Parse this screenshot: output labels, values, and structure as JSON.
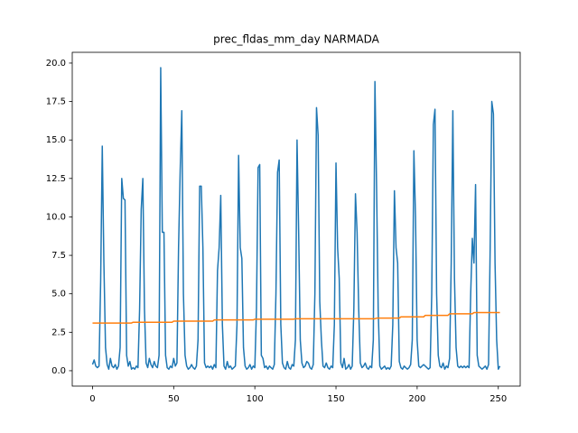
{
  "chart_data": {
    "type": "line",
    "title": "prec_fldas_mm_day NARMADA",
    "x": [
      0,
      1,
      2,
      3,
      4,
      5,
      6,
      7,
      8,
      9,
      10,
      11,
      12,
      13,
      14,
      15,
      16,
      17,
      18,
      19,
      20,
      21,
      22,
      23,
      24,
      25,
      26,
      27,
      28,
      29,
      30,
      31,
      32,
      33,
      34,
      35,
      36,
      37,
      38,
      39,
      40,
      41,
      42,
      43,
      44,
      45,
      46,
      47,
      48,
      49,
      50,
      51,
      52,
      53,
      54,
      55,
      56,
      57,
      58,
      59,
      60,
      61,
      62,
      63,
      64,
      65,
      66,
      67,
      68,
      69,
      70,
      71,
      72,
      73,
      74,
      75,
      76,
      77,
      78,
      79,
      80,
      81,
      82,
      83,
      84,
      85,
      86,
      87,
      88,
      89,
      90,
      91,
      92,
      93,
      94,
      95,
      96,
      97,
      98,
      99,
      100,
      101,
      102,
      103,
      104,
      105,
      106,
      107,
      108,
      109,
      110,
      111,
      112,
      113,
      114,
      115,
      116,
      117,
      118,
      119,
      120,
      121,
      122,
      123,
      124,
      125,
      126,
      127,
      128,
      129,
      130,
      131,
      132,
      133,
      134,
      135,
      136,
      137,
      138,
      139,
      140,
      141,
      142,
      143,
      144,
      145,
      146,
      147,
      148,
      149,
      150,
      151,
      152,
      153,
      154,
      155,
      156,
      157,
      158,
      159,
      160,
      161,
      162,
      163,
      164,
      165,
      166,
      167,
      168,
      169,
      170,
      171,
      172,
      173,
      174,
      175,
      176,
      177,
      178,
      179,
      180,
      181,
      182,
      183,
      184,
      185,
      186,
      187,
      188,
      189,
      190,
      191,
      192,
      193,
      194,
      195,
      196,
      197,
      198,
      199,
      200,
      201,
      202,
      203,
      204,
      205,
      206,
      207,
      208,
      209,
      210,
      211,
      212,
      213,
      214,
      215,
      216,
      217,
      218,
      219,
      220,
      221,
      222,
      223,
      224,
      225,
      226,
      227,
      228,
      229,
      230,
      231,
      232,
      233,
      234,
      235,
      236,
      237,
      238,
      239,
      240,
      241,
      242,
      243,
      244,
      245,
      246,
      247,
      248,
      249,
      250,
      251
    ],
    "series": [
      {
        "color": "#1f77b4",
        "values": [
          0.4,
          0.7,
          0.3,
          0.2,
          0.3,
          5.8,
          14.6,
          7.0,
          1.5,
          0.4,
          0.1,
          0.8,
          0.3,
          0.2,
          0.4,
          0.1,
          0.3,
          1.5,
          12.5,
          11.2,
          11.1,
          1.0,
          0.3,
          0.6,
          0.1,
          0.2,
          0.1,
          0.3,
          0.2,
          4.0,
          10.5,
          12.5,
          4.0,
          0.5,
          0.2,
          0.8,
          0.4,
          0.2,
          0.6,
          0.3,
          0.2,
          1.0,
          19.7,
          9.0,
          9.0,
          1.0,
          0.2,
          0.1,
          0.3,
          0.2,
          0.8,
          0.3,
          0.5,
          8.0,
          13.0,
          16.9,
          5.0,
          1.0,
          0.3,
          0.1,
          0.2,
          0.4,
          0.2,
          0.1,
          0.3,
          2.0,
          12.0,
          12.0,
          8.0,
          0.5,
          0.2,
          0.3,
          0.2,
          0.3,
          0.1,
          0.4,
          0.2,
          6.5,
          8.0,
          11.4,
          3.0,
          0.3,
          0.1,
          0.6,
          0.2,
          0.3,
          0.1,
          0.2,
          0.3,
          3.0,
          14.0,
          8.0,
          7.3,
          1.5,
          0.3,
          0.1,
          0.2,
          0.4,
          0.1,
          0.3,
          0.2,
          4.0,
          13.2,
          13.4,
          1.0,
          0.8,
          0.2,
          0.3,
          0.1,
          0.3,
          0.2,
          0.1,
          0.4,
          5.0,
          12.9,
          13.7,
          3.0,
          0.5,
          0.2,
          0.1,
          0.6,
          0.2,
          0.1,
          0.4,
          0.3,
          2.0,
          15.0,
          9.0,
          2.0,
          0.5,
          0.2,
          0.3,
          0.6,
          0.5,
          0.2,
          0.1,
          0.4,
          5.0,
          17.1,
          15.3,
          4.5,
          2.0,
          0.3,
          0.2,
          0.5,
          0.2,
          0.1,
          0.3,
          0.2,
          3.0,
          13.5,
          8.0,
          6.0,
          0.5,
          0.2,
          0.8,
          0.1,
          0.2,
          0.4,
          0.1,
          0.3,
          4.0,
          11.5,
          9.0,
          4.0,
          0.5,
          0.2,
          0.3,
          0.5,
          0.2,
          0.1,
          0.3,
          0.2,
          2.0,
          18.8,
          12.0,
          4.0,
          0.3,
          0.1,
          0.2,
          0.3,
          0.1,
          0.2,
          0.1,
          0.3,
          3.0,
          11.7,
          8.0,
          7.0,
          0.6,
          0.2,
          0.1,
          0.3,
          0.2,
          0.1,
          0.2,
          0.4,
          2.0,
          14.3,
          10.0,
          2.0,
          0.3,
          0.2,
          0.3,
          0.4,
          0.3,
          0.2,
          0.1,
          0.2,
          5.0,
          16.0,
          17.0,
          5.0,
          1.0,
          0.3,
          0.2,
          0.5,
          0.1,
          0.3,
          0.2,
          0.8,
          7.0,
          16.9,
          6.0,
          1.5,
          0.3,
          0.2,
          0.3,
          0.2,
          0.3,
          0.2,
          0.3,
          0.2,
          5.0,
          8.6,
          7.0,
          12.1,
          1.0,
          0.3,
          0.2,
          0.1,
          0.2,
          0.3,
          0.1,
          0.4,
          8.0,
          17.5,
          16.7,
          7.0,
          2.0,
          0.1,
          0.3
        ]
      },
      {
        "color": "#ff7f0e",
        "values": [
          3.1,
          3.1,
          3.1,
          3.1,
          3.1,
          3.1,
          3.1,
          3.1,
          3.1,
          3.1,
          3.1,
          3.1,
          3.1,
          3.1,
          3.1,
          3.1,
          3.1,
          3.1,
          3.1,
          3.1,
          3.1,
          3.1,
          3.1,
          3.1,
          3.1,
          3.15,
          3.15,
          3.15,
          3.15,
          3.15,
          3.15,
          3.15,
          3.15,
          3.15,
          3.15,
          3.15,
          3.15,
          3.15,
          3.15,
          3.15,
          3.15,
          3.15,
          3.15,
          3.15,
          3.15,
          3.15,
          3.15,
          3.15,
          3.15,
          3.15,
          3.22,
          3.22,
          3.22,
          3.22,
          3.22,
          3.22,
          3.22,
          3.22,
          3.22,
          3.22,
          3.22,
          3.22,
          3.22,
          3.22,
          3.22,
          3.22,
          3.22,
          3.22,
          3.22,
          3.22,
          3.22,
          3.22,
          3.22,
          3.22,
          3.22,
          3.3,
          3.3,
          3.3,
          3.3,
          3.3,
          3.3,
          3.3,
          3.3,
          3.3,
          3.3,
          3.3,
          3.3,
          3.3,
          3.3,
          3.3,
          3.3,
          3.3,
          3.3,
          3.3,
          3.3,
          3.3,
          3.3,
          3.3,
          3.3,
          3.3,
          3.35,
          3.35,
          3.35,
          3.35,
          3.35,
          3.35,
          3.35,
          3.35,
          3.35,
          3.35,
          3.35,
          3.35,
          3.35,
          3.35,
          3.35,
          3.35,
          3.35,
          3.35,
          3.35,
          3.35,
          3.35,
          3.35,
          3.35,
          3.35,
          3.35,
          3.38,
          3.38,
          3.38,
          3.38,
          3.38,
          3.38,
          3.38,
          3.38,
          3.38,
          3.38,
          3.38,
          3.38,
          3.38,
          3.38,
          3.38,
          3.38,
          3.38,
          3.38,
          3.38,
          3.38,
          3.38,
          3.38,
          3.38,
          3.38,
          3.38,
          3.38,
          3.38,
          3.38,
          3.38,
          3.38,
          3.38,
          3.38,
          3.38,
          3.38,
          3.38,
          3.38,
          3.38,
          3.38,
          3.38,
          3.38,
          3.38,
          3.38,
          3.38,
          3.38,
          3.38,
          3.38,
          3.38,
          3.38,
          3.38,
          3.38,
          3.42,
          3.42,
          3.42,
          3.42,
          3.42,
          3.42,
          3.42,
          3.42,
          3.42,
          3.42,
          3.42,
          3.42,
          3.42,
          3.42,
          3.42,
          3.5,
          3.5,
          3.5,
          3.5,
          3.5,
          3.5,
          3.5,
          3.5,
          3.5,
          3.5,
          3.5,
          3.5,
          3.5,
          3.5,
          3.5,
          3.6,
          3.6,
          3.6,
          3.6,
          3.6,
          3.6,
          3.6,
          3.6,
          3.6,
          3.6,
          3.6,
          3.6,
          3.6,
          3.6,
          3.6,
          3.7,
          3.7,
          3.7,
          3.7,
          3.7,
          3.7,
          3.7,
          3.7,
          3.7,
          3.7,
          3.7,
          3.7,
          3.7,
          3.7,
          3.7,
          3.78,
          3.78,
          3.78,
          3.78,
          3.78,
          3.78,
          3.78,
          3.78,
          3.78,
          3.78,
          3.78,
          3.78,
          3.78,
          3.78,
          3.78,
          3.78,
          3.78
        ]
      }
    ],
    "xlim": [
      -12.5,
      263.5
    ],
    "xticks": [
      0,
      50,
      100,
      150,
      200,
      250
    ],
    "ylim": [
      -1.0,
      20.7
    ],
    "yticks": [
      {
        "value": 0,
        "label": "0.0"
      },
      {
        "value": 2.5,
        "label": "2.5"
      },
      {
        "value": 5,
        "label": "5.0"
      },
      {
        "value": 7.5,
        "label": "7.5"
      },
      {
        "value": 10,
        "label": "10.0"
      },
      {
        "value": 12.5,
        "label": "12.5"
      },
      {
        "value": 15,
        "label": "15.0"
      },
      {
        "value": 17.5,
        "label": "17.5"
      },
      {
        "value": 20,
        "label": "20.0"
      }
    ],
    "grid": false
  }
}
